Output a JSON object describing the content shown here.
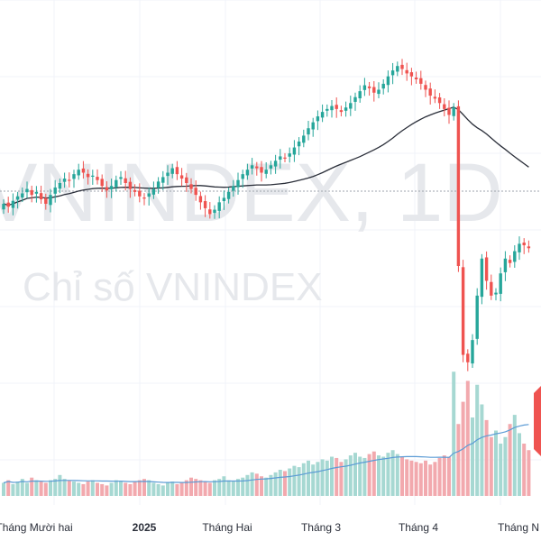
{
  "chart_data": {
    "type": "candlestick",
    "watermark": {
      "symbol": "VNINDEX, 1D",
      "name": "Chỉ số VNINDEX"
    },
    "x_tick_labels": [
      "Tháng Mười hai",
      "2025",
      "Tháng Hai",
      "Tháng 3",
      "Tháng 4",
      "Tháng N"
    ],
    "grid": true,
    "colors": {
      "up": "#26a69a",
      "down": "#ef5350",
      "volume_up": "#a6d8d2",
      "volume_down": "#f2a9ae",
      "ma_price": "#2a2e39",
      "ma_volume": "#5b9bd5"
    },
    "price_close_trend": [
      1252,
      1250,
      1254,
      1257,
      1259,
      1262,
      1258,
      1260,
      1255,
      1252,
      1258,
      1263,
      1266,
      1269,
      1268,
      1272,
      1275,
      1273,
      1270,
      1271,
      1268,
      1264,
      1261,
      1264,
      1268,
      1270,
      1266,
      1262,
      1260,
      1257,
      1256,
      1259,
      1262,
      1267,
      1270,
      1273,
      1276,
      1272,
      1269,
      1266,
      1262,
      1258,
      1253,
      1249,
      1245,
      1248,
      1253,
      1256,
      1260,
      1264,
      1268,
      1272,
      1275,
      1278,
      1276,
      1273,
      1275,
      1278,
      1281,
      1284,
      1283,
      1286,
      1290,
      1294,
      1298,
      1303,
      1307,
      1311,
      1314,
      1316,
      1318,
      1316,
      1314,
      1317,
      1320,
      1324,
      1328,
      1332,
      1330,
      1327,
      1329,
      1333,
      1338,
      1342,
      1345,
      1343,
      1340,
      1338,
      1336,
      1333,
      1329,
      1325,
      1323,
      1320,
      1316,
      1312,
      1317,
      1210,
      1150,
      1145,
      1160,
      1190,
      1215,
      1200,
      1190,
      1192,
      1205,
      1215,
      1212,
      1220,
      1225,
      1224,
      1222
    ],
    "volume_trend": [
      0.1,
      0.12,
      0.09,
      0.11,
      0.13,
      0.1,
      0.14,
      0.12,
      0.11,
      0.1,
      0.12,
      0.13,
      0.16,
      0.13,
      0.12,
      0.11,
      0.1,
      0.09,
      0.11,
      0.12,
      0.1,
      0.09,
      0.08,
      0.1,
      0.12,
      0.11,
      0.1,
      0.09,
      0.11,
      0.12,
      0.13,
      0.12,
      0.1,
      0.09,
      0.08,
      0.1,
      0.11,
      0.09,
      0.1,
      0.12,
      0.14,
      0.13,
      0.12,
      0.11,
      0.1,
      0.12,
      0.13,
      0.15,
      0.12,
      0.11,
      0.13,
      0.14,
      0.16,
      0.18,
      0.17,
      0.15,
      0.14,
      0.16,
      0.18,
      0.2,
      0.19,
      0.21,
      0.23,
      0.22,
      0.25,
      0.27,
      0.24,
      0.26,
      0.28,
      0.27,
      0.3,
      0.29,
      0.26,
      0.28,
      0.31,
      0.33,
      0.3,
      0.29,
      0.32,
      0.34,
      0.31,
      0.3,
      0.33,
      0.35,
      0.32,
      0.3,
      0.28,
      0.27,
      0.26,
      0.25,
      0.27,
      0.24,
      0.26,
      0.29,
      0.31,
      0.3,
      0.95,
      0.55,
      0.72,
      0.88,
      0.6,
      0.85,
      0.7,
      0.58,
      0.45,
      0.5,
      0.4,
      0.45,
      0.55,
      0.62,
      0.48,
      0.4,
      0.35
    ]
  }
}
